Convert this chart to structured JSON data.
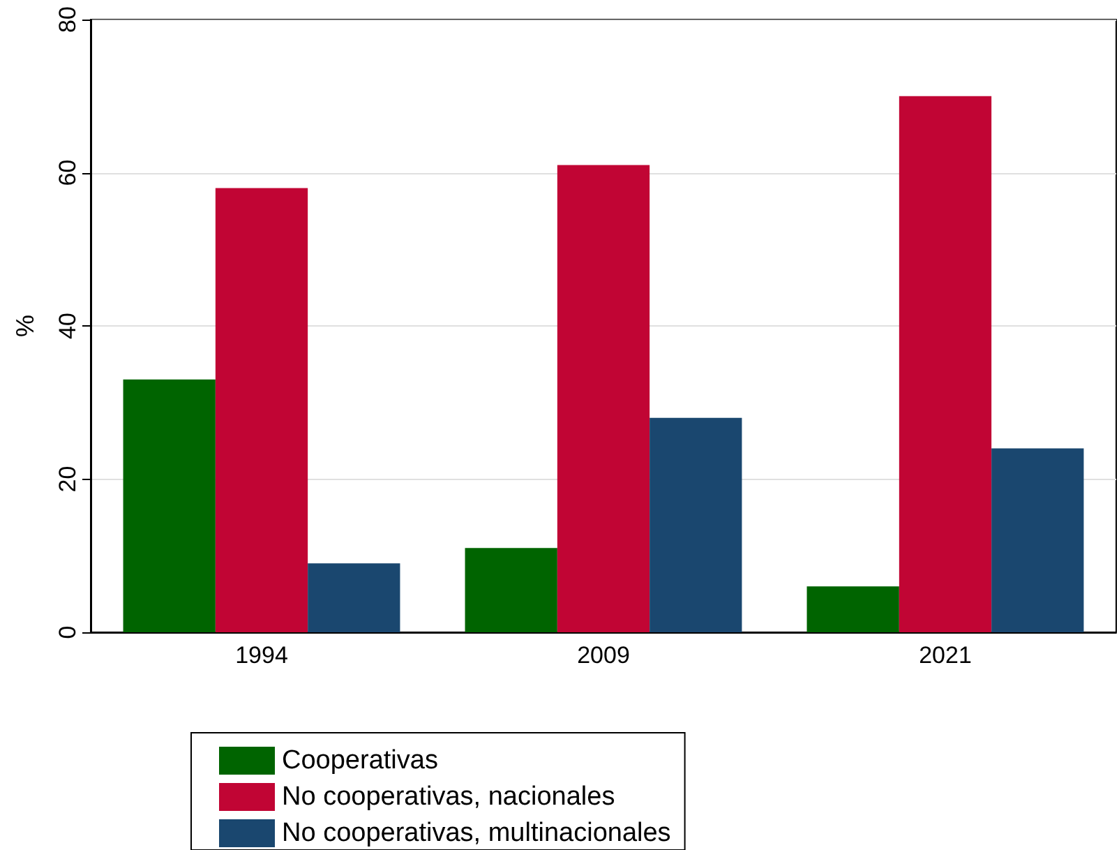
{
  "chart_data": {
    "type": "bar",
    "ylabel": "%",
    "categories": [
      "1994",
      "2009",
      "2021"
    ],
    "series": [
      {
        "name": "Cooperativas",
        "color": "#006400",
        "values": [
          33,
          11,
          6
        ]
      },
      {
        "name": "No cooperativas, nacionales",
        "color": "#c10534",
        "values": [
          58,
          61,
          70
        ]
      },
      {
        "name": "No cooperativas, multinacionales",
        "color": "#1a476f",
        "values": [
          9,
          28,
          24
        ]
      }
    ],
    "ylim": [
      0,
      80
    ],
    "yticks": [
      0,
      20,
      40,
      60,
      80
    ],
    "grid": "y",
    "legend": "bottom"
  }
}
